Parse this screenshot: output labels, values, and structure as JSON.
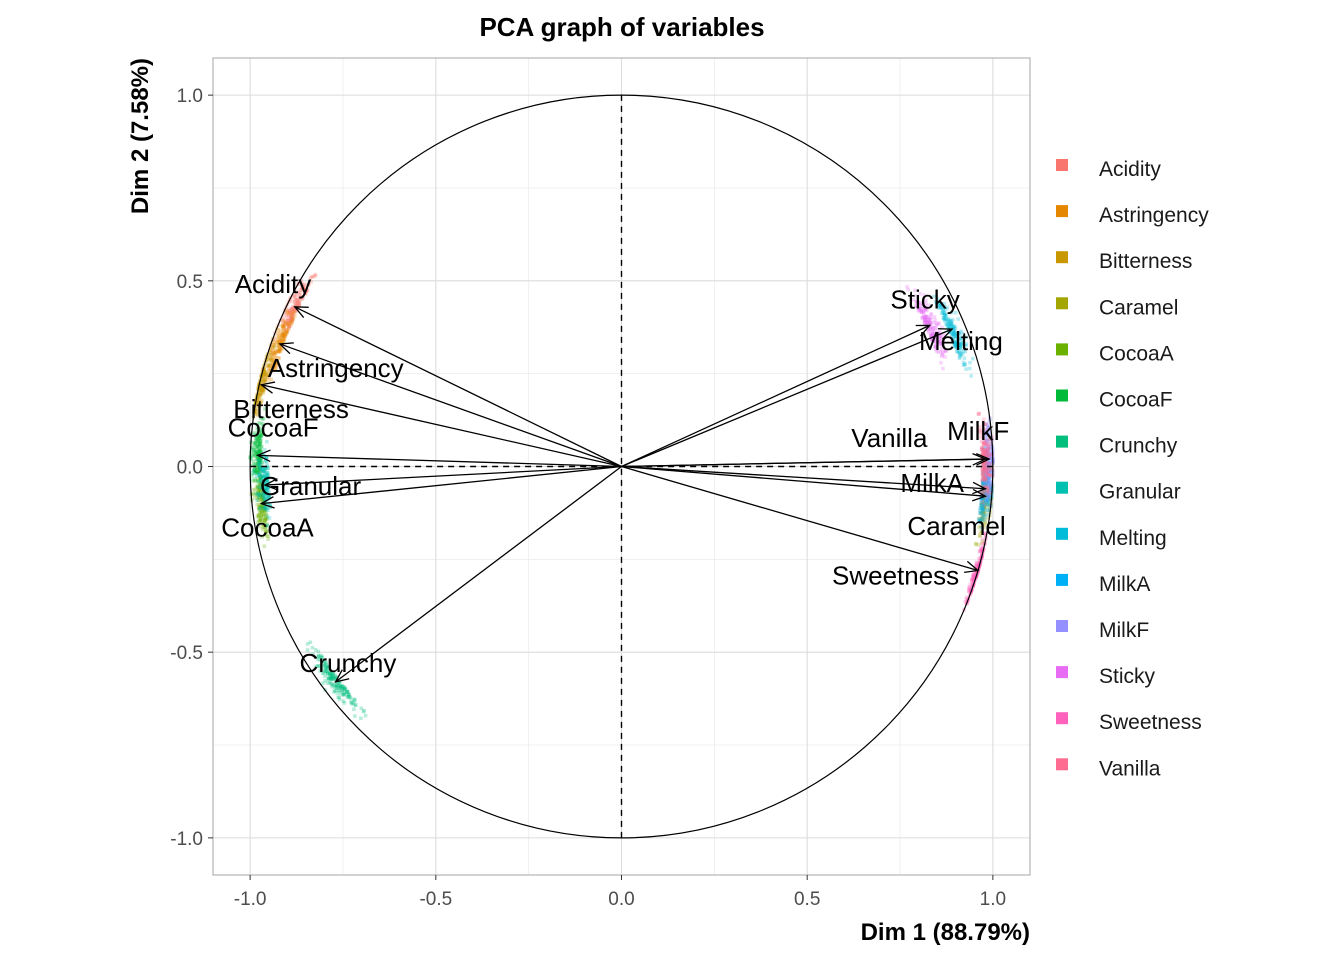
{
  "chart_data": {
    "type": "scatter",
    "title": "PCA graph of variables",
    "xlabel": "Dim 1 (88.79%)",
    "ylabel": "Dim 2 (7.58%)",
    "xlim": [
      -1.1,
      1.1
    ],
    "ylim": [
      -1.1,
      1.1
    ],
    "xticks": [
      -1.0,
      -0.5,
      0.0,
      0.5,
      1.0
    ],
    "yticks": [
      -1.0,
      -0.5,
      0.0,
      0.5,
      1.0
    ],
    "xtick_labels": [
      "-1.0",
      "-0.5",
      "0.0",
      "0.5",
      "1.0"
    ],
    "ytick_labels": [
      "-1.0",
      "-0.5",
      "0.0",
      "0.5",
      "1.0"
    ],
    "grid": true,
    "legend_position": "right",
    "correlation_circle": true,
    "series": [
      {
        "name": "Acidity",
        "color": "#F8766D",
        "x": -0.88,
        "y": 0.43
      },
      {
        "name": "Astringency",
        "color": "#DB8E00",
        "x": -0.92,
        "y": 0.33
      },
      {
        "name": "Bitterness",
        "color": "#AEA200",
        "x": -0.97,
        "y": 0.22
      },
      {
        "name": "Caramel",
        "color": "#64B200",
        "x": 0.98,
        "y": -0.08
      },
      {
        "name": "CocoaA",
        "color": "#00BD5C",
        "x": -0.97,
        "y": -0.1
      },
      {
        "name": "CocoaF",
        "color": "#00C1A7",
        "x": -0.98,
        "y": 0.03
      },
      {
        "name": "Crunchy",
        "color": "#00BADE",
        "x": -0.77,
        "y": -0.58
      },
      {
        "name": "Granular",
        "color": "#00A6FF",
        "x": -0.96,
        "y": -0.05
      },
      {
        "name": "Melting",
        "color": "#B385FF",
        "x": 0.89,
        "y": 0.37
      },
      {
        "name": "MilkA",
        "color": "#EF67EB",
        "x": 0.98,
        "y": -0.06
      },
      {
        "name": "MilkF",
        "color": "#FF63B6",
        "x": 0.99,
        "y": 0.02
      },
      {
        "name": "Sticky",
        "color": "#F8766D",
        "x": 0.83,
        "y": 0.38
      },
      {
        "name": "Sweetness",
        "color": "#DB8E00",
        "x": 0.96,
        "y": -0.28
      },
      {
        "name": "Vanilla",
        "color": "#AEA200",
        "x": 0.98,
        "y": 0.02
      }
    ],
    "legend": [
      {
        "name": "Acidity",
        "color": "#F8766D"
      },
      {
        "name": "Astringency",
        "color": "#E58700"
      },
      {
        "name": "Bitterness",
        "color": "#C99800"
      },
      {
        "name": "Caramel",
        "color": "#A3A500"
      },
      {
        "name": "CocoaA",
        "color": "#6BB100"
      },
      {
        "name": "CocoaF",
        "color": "#00BA38"
      },
      {
        "name": "Crunchy",
        "color": "#00BF7D"
      },
      {
        "name": "Granular",
        "color": "#00C0AF"
      },
      {
        "name": "Melting",
        "color": "#00BCD8"
      },
      {
        "name": "MilkA",
        "color": "#00B0F6"
      },
      {
        "name": "MilkF",
        "color": "#9590FF"
      },
      {
        "name": "Sticky",
        "color": "#E76BF3"
      },
      {
        "name": "Sweetness",
        "color": "#FF62BC"
      },
      {
        "name": "Vanilla",
        "color": "#FF6C91"
      }
    ]
  }
}
